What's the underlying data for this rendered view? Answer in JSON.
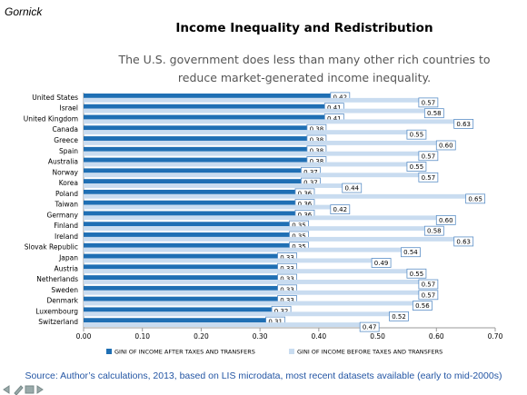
{
  "header": {
    "author": "Gornick"
  },
  "chart_data": {
    "type": "bar",
    "orientation": "horizontal",
    "title": "Income Inequality and Redistribution",
    "subtitle": "The U.S. government does less than many other rich countries to reduce market-generated income inequality.",
    "source": "Source: Author’s calculations, 2013, based on LIS microdata, most recent datasets available (early to mid-2000s)",
    "categories": [
      "United States",
      "Israel",
      "United Kingdom",
      "Canada",
      "Greece",
      "Spain",
      "Australia",
      "Norway",
      "Korea",
      "Poland",
      "Taiwan",
      "Germany",
      "Finland",
      "Ireland",
      "Slovak Republic",
      "Japan",
      "Austria",
      "Netherlands",
      "Sweden",
      "Denmark",
      "Luxembourg",
      "Switzerland"
    ],
    "series": [
      {
        "name": "GINI OF INCOME AFTER TAXES AND TRANSFERS",
        "color": "#1f6fb4",
        "values": [
          0.42,
          0.41,
          0.41,
          0.38,
          0.38,
          0.38,
          0.38,
          0.37,
          0.37,
          0.36,
          0.36,
          0.36,
          0.35,
          0.35,
          0.35,
          0.33,
          0.33,
          0.33,
          0.33,
          0.33,
          0.32,
          0.31
        ],
        "value_labels": [
          "0.42",
          "0.41",
          "0.41",
          "0.38",
          "0.38",
          "0.38",
          "0.38",
          "0.37",
          "0.37",
          "0.36",
          "0.36",
          "0.36",
          "0.35",
          "0.35",
          "0.35",
          "0.33",
          "0.33",
          "0.33",
          "0.33",
          "0.33",
          "0.32",
          "0.31"
        ]
      },
      {
        "name": "GINI OF INCOME BEFORE TAXES AND TRANSFERS",
        "color": "#c9dcf0",
        "values": [
          0.57,
          0.58,
          0.63,
          0.55,
          0.6,
          0.57,
          0.55,
          0.57,
          0.44,
          0.65,
          0.42,
          0.6,
          0.58,
          0.63,
          0.54,
          0.49,
          0.55,
          0.57,
          0.57,
          0.56,
          0.52,
          0.47
        ],
        "value_labels": [
          "0.57",
          "0.58",
          "0.63",
          "0.55",
          "0.60",
          "0.57",
          "0.55",
          "0.57",
          "0.44",
          "0.65",
          "0.42",
          "0.60",
          "0.58",
          "0.63",
          "0.54",
          "0.49",
          "0.55",
          "0.57",
          "0.57",
          "0.56",
          "0.52",
          "0.47"
        ]
      }
    ],
    "xlim": [
      0,
      0.7
    ],
    "xticks": [
      {
        "value": 0,
        "label": "0.00"
      },
      {
        "value": 0.1,
        "label": "0.10"
      },
      {
        "value": 0.2,
        "label": "0.20"
      },
      {
        "value": 0.3,
        "label": "0.30"
      },
      {
        "value": 0.4,
        "label": "0.40"
      },
      {
        "value": 0.5,
        "label": "0.50"
      },
      {
        "value": 0.6,
        "label": "0.60"
      },
      {
        "value": 0.7,
        "label": "0.70"
      }
    ],
    "grid": false,
    "legend": "bottom"
  }
}
